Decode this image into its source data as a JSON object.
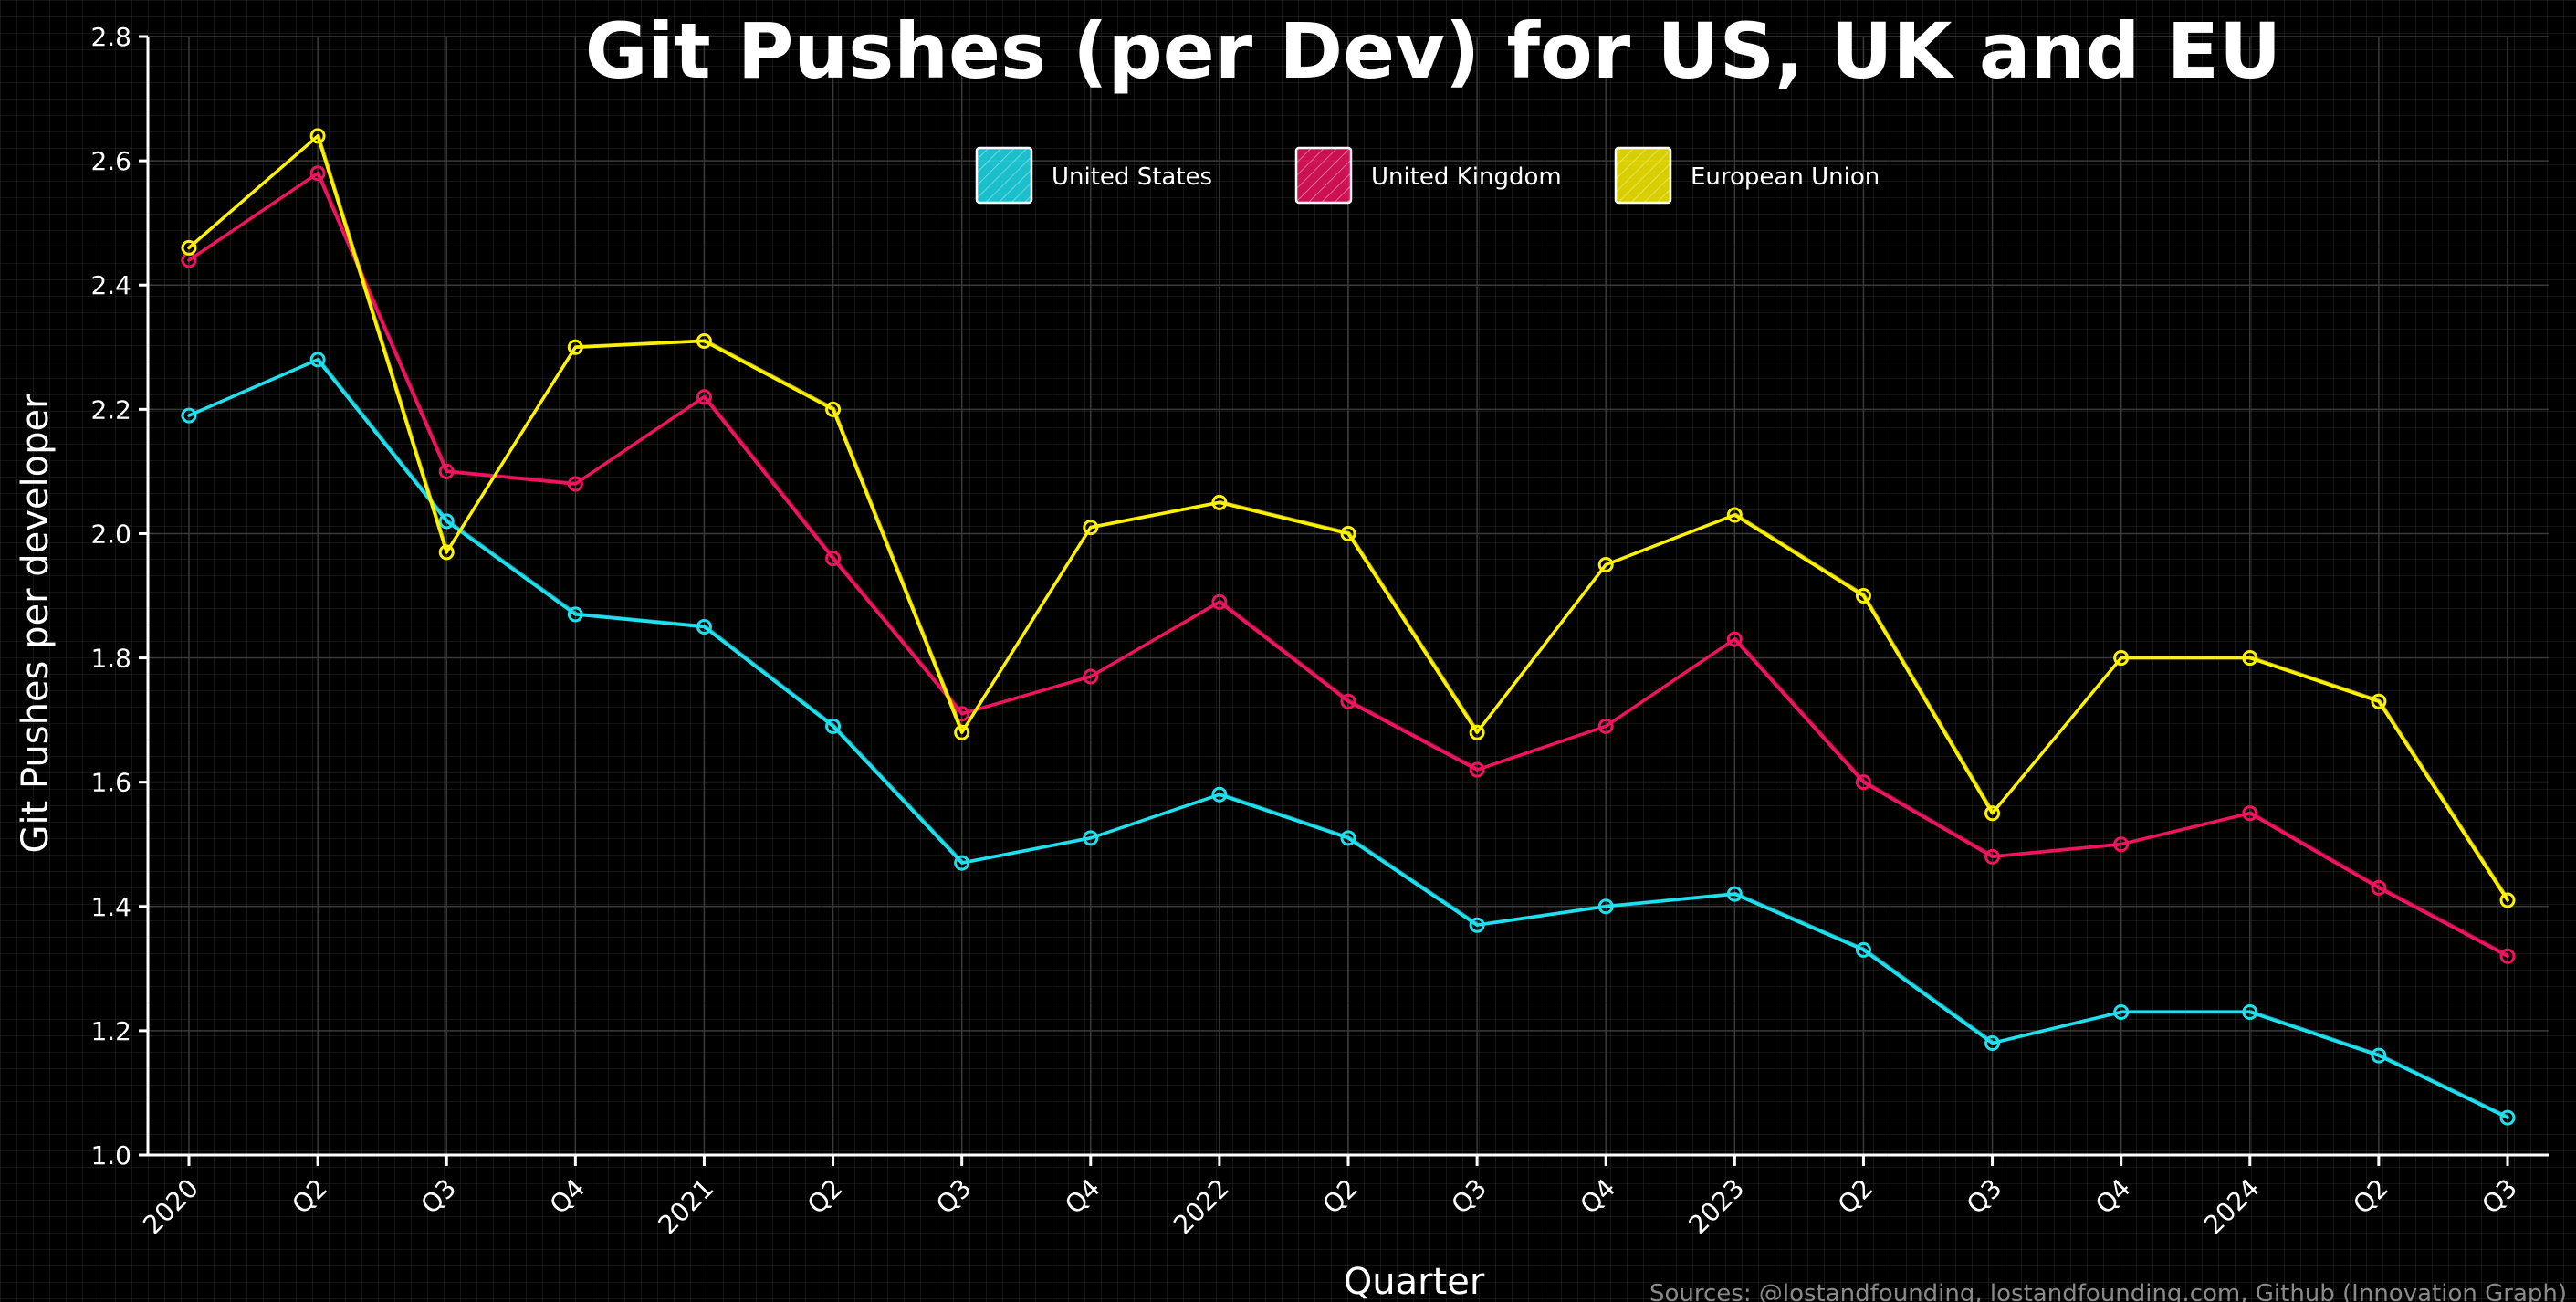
{
  "chart_data": {
    "type": "line",
    "title": "Git Pushes (per Dev) for US, UK and EU",
    "xlabel": "Quarter",
    "ylabel": "Git Pushes per developer",
    "categories": [
      "2020",
      "Q2",
      "Q3",
      "Q4",
      "2021",
      "Q2",
      "Q3",
      "Q4",
      "2022",
      "Q2",
      "Q3",
      "Q4",
      "2023",
      "Q2",
      "Q3",
      "Q4",
      "2024",
      "Q2",
      "Q3"
    ],
    "ylim": [
      1.0,
      2.8
    ],
    "yticks": [
      "1.0",
      "1.2",
      "1.4",
      "1.6",
      "1.8",
      "2.0",
      "2.2",
      "2.4",
      "2.6",
      "2.8"
    ],
    "grid": true,
    "legend_position": "top-center",
    "series": [
      {
        "name": "United States",
        "color": "#1fe0ee",
        "values": [
          2.19,
          2.28,
          2.02,
          1.87,
          1.85,
          1.69,
          1.47,
          1.51,
          1.58,
          1.51,
          1.37,
          1.4,
          1.42,
          1.33,
          1.18,
          1.23,
          1.23,
          1.16,
          1.06
        ]
      },
      {
        "name": "United Kingdom",
        "color": "#ee145f",
        "values": [
          2.44,
          2.58,
          2.1,
          2.08,
          2.22,
          1.96,
          1.71,
          1.77,
          1.89,
          1.73,
          1.62,
          1.69,
          1.83,
          1.6,
          1.48,
          1.5,
          1.55,
          1.43,
          1.32
        ]
      },
      {
        "name": "European Union",
        "color": "#fff200",
        "values": [
          2.46,
          2.64,
          1.97,
          2.3,
          2.31,
          2.2,
          1.68,
          2.01,
          2.05,
          2.0,
          1.68,
          1.95,
          2.03,
          1.9,
          1.55,
          1.8,
          1.8,
          1.73,
          1.41
        ]
      }
    ],
    "source": "Sources: @lostandfounding, lostandfounding.com, Github (Innovation Graph)"
  }
}
